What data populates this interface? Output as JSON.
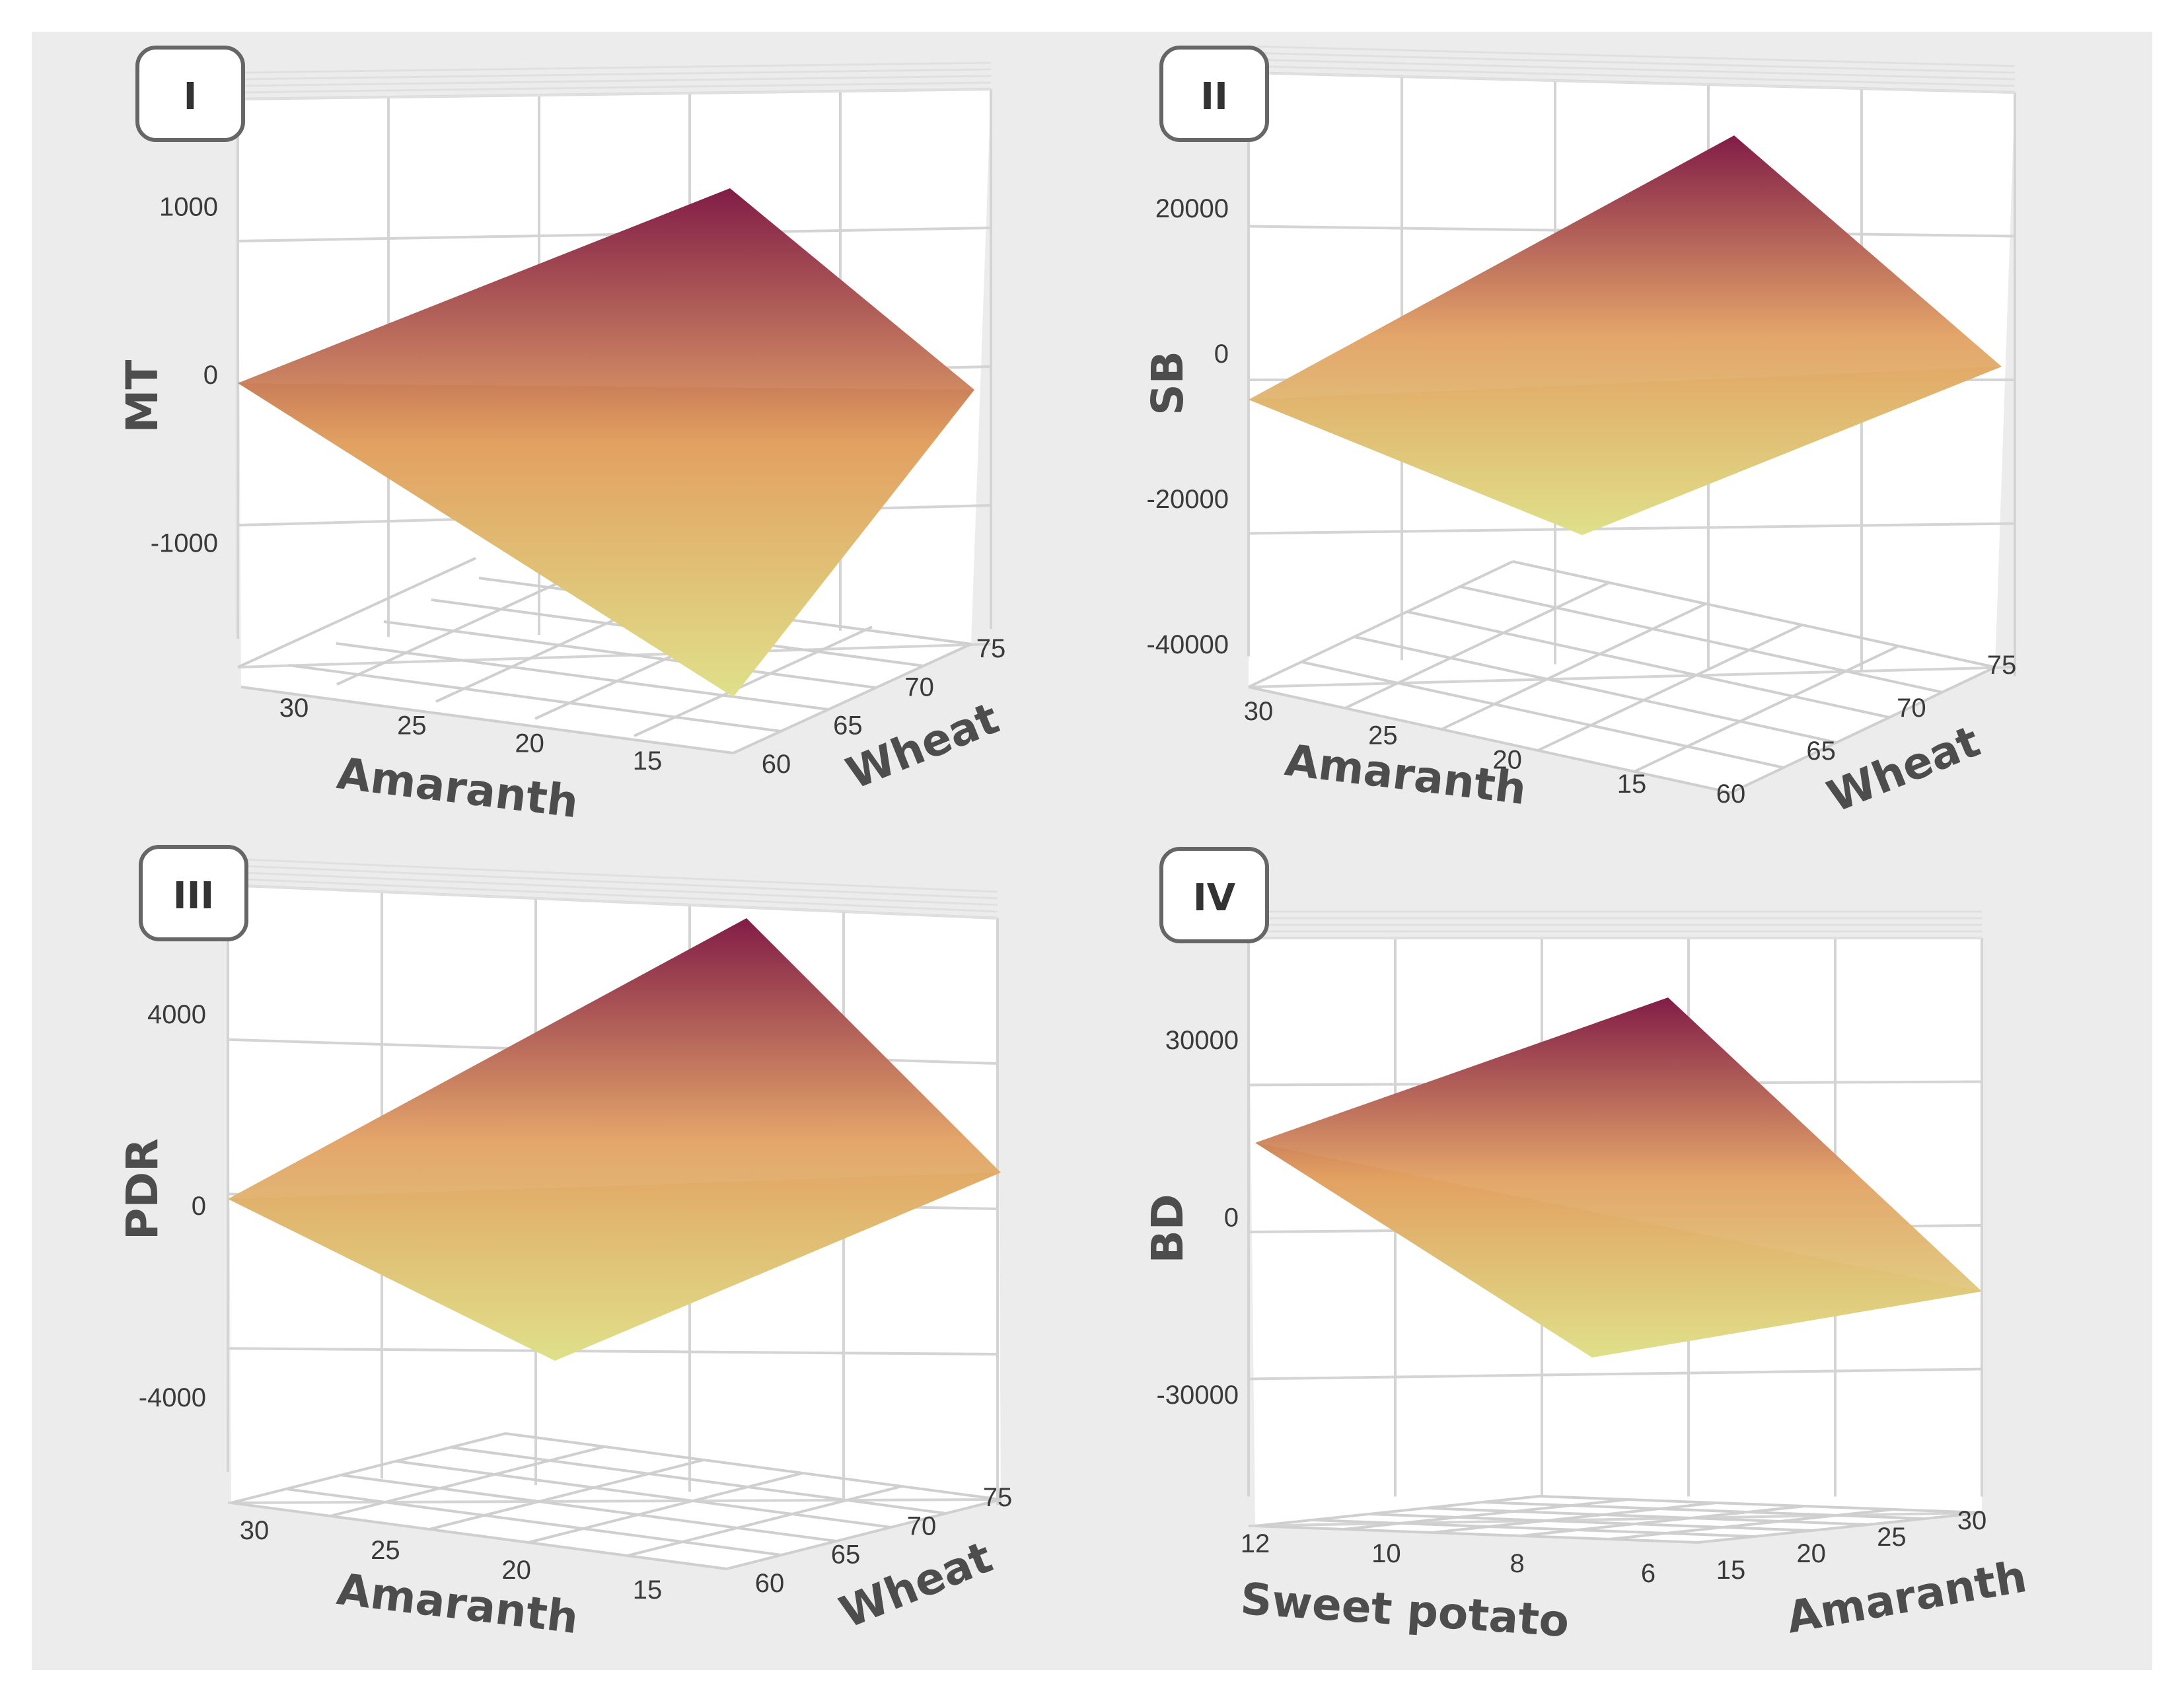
{
  "chart_data": [
    {
      "type": "surface",
      "panel_label": "I",
      "zlabel": "MT",
      "xlabel": "Amaranth",
      "ylabel": "Wheat",
      "x_ticks": [
        "30",
        "25",
        "20",
        "15"
      ],
      "y_ticks": [
        "60",
        "65",
        "70",
        "75"
      ],
      "z_ticks": [
        "1000",
        "0",
        "-1000"
      ],
      "xlim": [
        13,
        32
      ],
      "ylim": [
        58,
        77
      ],
      "zlim": [
        -1700,
        1500
      ],
      "surface_corners": [
        {
          "amaranth": 13,
          "wheat": 77,
          "value": 1200
        },
        {
          "amaranth": 32,
          "wheat": 77,
          "value": 0
        },
        {
          "amaranth": 13,
          "wheat": 58,
          "value": 0
        },
        {
          "amaranth": 32,
          "wheat": 58,
          "value": -1600
        }
      ],
      "colors": {
        "high": "#7a0f3c",
        "mid": "#e2a061",
        "low": "#dfe08a"
      }
    },
    {
      "type": "surface",
      "panel_label": "II",
      "zlabel": "SB",
      "xlabel": "Amaranth",
      "ylabel": "Wheat",
      "x_ticks": [
        "30",
        "25",
        "20",
        "15"
      ],
      "y_ticks": [
        "60",
        "65",
        "70",
        "75"
      ],
      "z_ticks": [
        "20000",
        "0",
        "-20000",
        "-40000"
      ],
      "xlim": [
        13,
        32
      ],
      "ylim": [
        58,
        77
      ],
      "zlim": [
        -45000,
        35000
      ],
      "surface_corners": [
        {
          "amaranth": 13,
          "wheat": 77,
          "value": 30000
        },
        {
          "amaranth": 32,
          "wheat": 77,
          "value": 0
        },
        {
          "amaranth": 13,
          "wheat": 58,
          "value": 0
        },
        {
          "amaranth": 32,
          "wheat": 58,
          "value": -20000
        }
      ],
      "colors": {
        "high": "#7a0f3c",
        "mid": "#e2a061",
        "low": "#dfe08a"
      }
    },
    {
      "type": "surface",
      "panel_label": "III",
      "zlabel": "PDR",
      "xlabel": "Amaranth",
      "ylabel": "Wheat",
      "x_ticks": [
        "30",
        "25",
        "20",
        "15"
      ],
      "y_ticks": [
        "60",
        "65",
        "70",
        "75"
      ],
      "z_ticks": [
        "4000",
        "0",
        "-4000"
      ],
      "xlim": [
        13,
        32
      ],
      "ylim": [
        58,
        77
      ],
      "zlim": [
        -6000,
        6000
      ],
      "surface_corners": [
        {
          "amaranth": 13,
          "wheat": 77,
          "value": 5500
        },
        {
          "amaranth": 32,
          "wheat": 77,
          "value": 0
        },
        {
          "amaranth": 13,
          "wheat": 58,
          "value": 0
        },
        {
          "amaranth": 32,
          "wheat": 58,
          "value": -3400
        }
      ],
      "colors": {
        "high": "#7a0f3c",
        "mid": "#e2a061",
        "low": "#dfe08a"
      }
    },
    {
      "type": "surface",
      "panel_label": "IV",
      "zlabel": "BD",
      "xlabel": "Sweet potato",
      "ylabel": "Amaranth",
      "x_ticks": [
        "12",
        "10",
        "8",
        "6"
      ],
      "y_ticks": [
        "15",
        "20",
        "25",
        "30"
      ],
      "z_ticks": [
        "30000",
        "0",
        "-30000"
      ],
      "xlim": [
        4,
        13
      ],
      "ylim": [
        13,
        32
      ],
      "zlim": [
        -50000,
        45000
      ],
      "surface_corners": [
        {
          "sweet_potato": 4,
          "amaranth": 32,
          "value": 40000
        },
        {
          "sweet_potato": 13,
          "amaranth": 32,
          "value": 15000
        },
        {
          "sweet_potato": 4,
          "amaranth": 13,
          "value": -10000
        },
        {
          "sweet_potato": 13,
          "amaranth": 13,
          "value": -22000
        }
      ],
      "colors": {
        "high": "#7a0f3c",
        "mid": "#e2a061",
        "low": "#dfe08a"
      }
    }
  ]
}
